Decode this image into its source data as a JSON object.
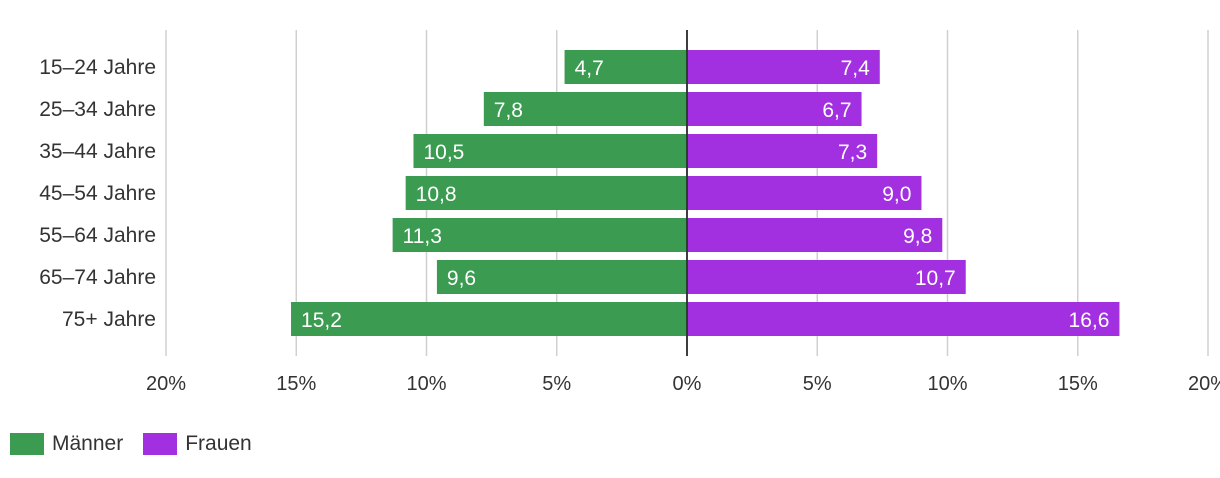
{
  "chart_data": {
    "type": "bar",
    "orientation": "horizontal-diverging",
    "categories": [
      "15–24 Jahre",
      "25–34 Jahre",
      "35–44 Jahre",
      "45–54 Jahre",
      "55–64 Jahre",
      "65–74 Jahre",
      "75+ Jahre"
    ],
    "series": [
      {
        "name": "Männer",
        "color": "#3a9b51",
        "side": "left",
        "values": [
          4.7,
          7.8,
          10.5,
          10.8,
          11.3,
          9.6,
          15.2
        ],
        "labels": [
          "4,7",
          "7,8",
          "10,5",
          "10,8",
          "11,3",
          "9,6",
          "15,2"
        ]
      },
      {
        "name": "Frauen",
        "color": "#a22fe0",
        "side": "right",
        "values": [
          7.4,
          6.7,
          7.3,
          9.0,
          9.8,
          10.7,
          16.6
        ],
        "labels": [
          "7,4",
          "6,7",
          "7,3",
          "9,0",
          "9,8",
          "10,7",
          "16,6"
        ]
      }
    ],
    "x_ticks": [
      -20,
      -15,
      -10,
      -5,
      0,
      5,
      10,
      15,
      20
    ],
    "x_tick_labels": [
      "20%",
      "15%",
      "10%",
      "5%",
      "0%",
      "5%",
      "10%",
      "15%",
      "20%"
    ],
    "xlim": [
      -20,
      20
    ],
    "grid": true,
    "legend_position": "bottom-left"
  }
}
